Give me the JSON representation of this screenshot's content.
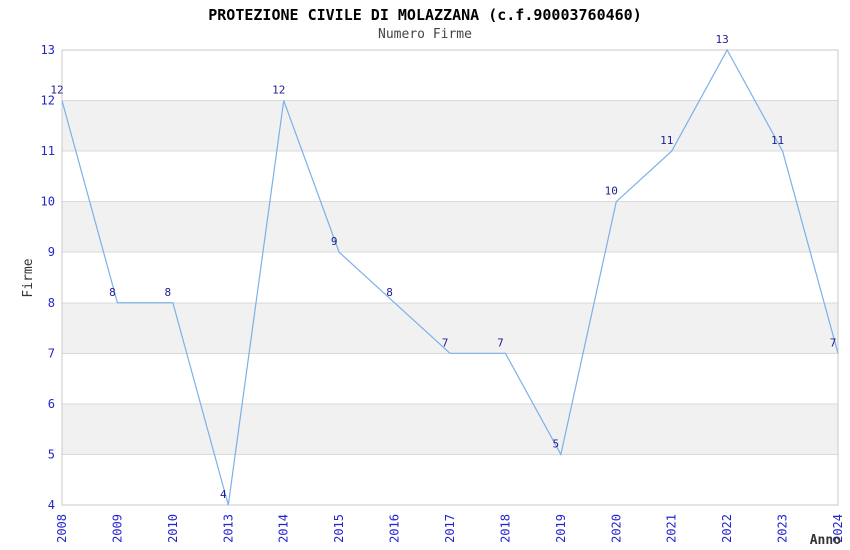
{
  "chart_data": {
    "type": "line",
    "title": "PROTEZIONE CIVILE DI MOLAZZANA (c.f.90003760460)",
    "subtitle": "Numero Firme",
    "xlabel": "Anno",
    "ylabel": "Firme",
    "categories": [
      "2008",
      "2009",
      "2010",
      "2013",
      "2014",
      "2015",
      "2016",
      "2017",
      "2018",
      "2019",
      "2020",
      "2021",
      "2022",
      "2023",
      "2024"
    ],
    "values": [
      12,
      8,
      8,
      4,
      12,
      9,
      8,
      7,
      7,
      5,
      10,
      11,
      13,
      11,
      7
    ],
    "ylim": [
      4,
      13
    ],
    "y_tick_step": 1,
    "grid": "horizontal-only",
    "alternating_bands": true,
    "legend": "none",
    "point_labels_visible": true,
    "colors": {
      "line": "#7cb0e8",
      "point_label": "#1f1f8f",
      "tick_label": "#2424cc",
      "grid_line": "#d9d9d9",
      "plot_border": "#c9c9c9",
      "band_fill": "#f1f1f1",
      "title": "#000000",
      "subtitle": "#444444",
      "axis_label": "#333333",
      "background": "#ffffff"
    }
  }
}
